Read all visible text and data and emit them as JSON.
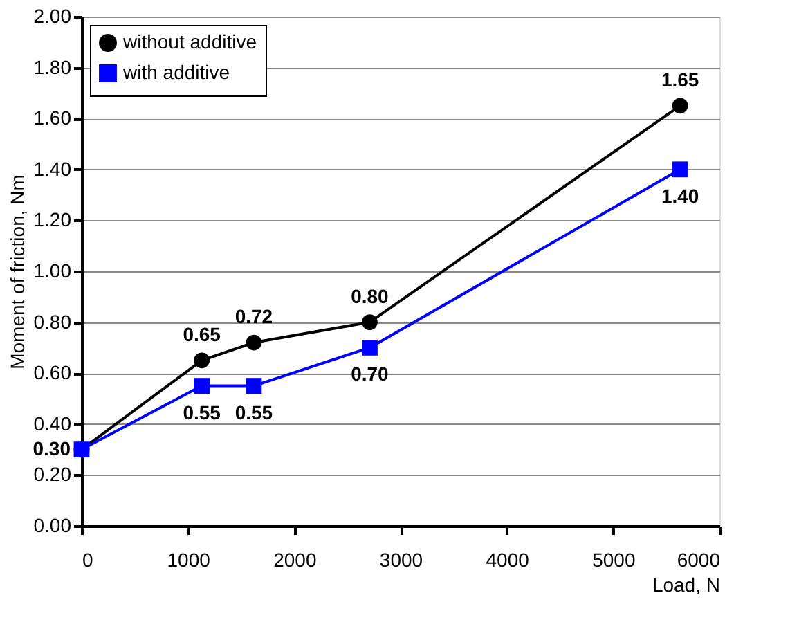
{
  "chart_data": {
    "type": "line",
    "xlabel": "Load, N",
    "ylabel": "Moment of friction, Nm",
    "x": [
      0,
      1130,
      1620,
      2710,
      5630
    ],
    "series": [
      {
        "name": "without additive",
        "color": "#000000",
        "marker": "circle",
        "values": [
          0.3,
          0.65,
          0.72,
          0.8,
          1.65
        ],
        "value_labels": [
          null,
          "0.65",
          "0.72",
          "0.80",
          "1.65"
        ]
      },
      {
        "name": "with additive",
        "color": "#0000ff",
        "marker": "square",
        "values": [
          0.3,
          0.55,
          0.55,
          0.7,
          1.4
        ],
        "value_labels": [
          "0.30",
          "0.55",
          "0.55",
          "0.70",
          "1.40"
        ]
      }
    ],
    "xlim": [
      0,
      6000
    ],
    "xticks": [
      0,
      1000,
      2000,
      3000,
      4000,
      5000,
      6000
    ],
    "ylim": [
      0,
      2
    ],
    "yticks": [
      {
        "value": 0,
        "label": "0.00"
      },
      {
        "value": 0.2,
        "label": "0.20"
      },
      {
        "value": 0.4,
        "label": "0.40"
      },
      {
        "value": 0.6,
        "label": "0.60"
      },
      {
        "value": 0.8,
        "label": "0.80"
      },
      {
        "value": 1.0,
        "label": "1.00"
      },
      {
        "value": 1.2,
        "label": "1.20"
      },
      {
        "value": 1.4,
        "label": "1.40"
      },
      {
        "value": 1.6,
        "label": "1.60"
      },
      {
        "value": 1.8,
        "label": "1.80"
      },
      {
        "value": 2.0,
        "label": "2.00"
      }
    ],
    "grid": "y",
    "legend": "top left",
    "line_style": "solid"
  }
}
